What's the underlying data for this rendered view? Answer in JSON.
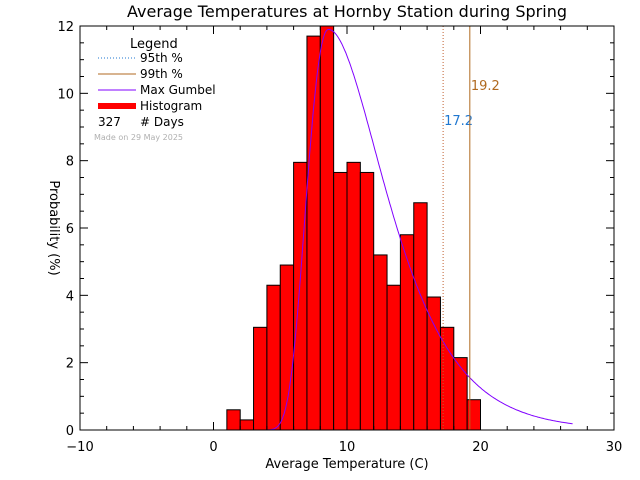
{
  "chart_data": {
    "type": "bar",
    "title": "Average Temperatures at Hornby Station during Spring",
    "xlabel": "Average Temperature (C)",
    "ylabel": "Probability (%)",
    "xlim": [
      -10,
      30
    ],
    "ylim": [
      0,
      12
    ],
    "xticks": [
      -10,
      0,
      10,
      20,
      30
    ],
    "yticks": [
      0,
      2,
      4,
      6,
      8,
      10,
      12
    ],
    "histogram": {
      "name": "Histogram",
      "color": "#ff0000",
      "bin_edges": [
        1,
        2,
        3,
        4,
        5,
        6,
        7,
        8,
        9,
        10,
        11,
        12,
        13,
        14,
        15,
        16,
        17,
        18,
        19,
        20
      ],
      "values": [
        0.6,
        0.3,
        3.05,
        4.3,
        4.9,
        7.95,
        11.7,
        12.0,
        7.65,
        7.95,
        7.65,
        5.2,
        4.3,
        5.8,
        6.75,
        3.95,
        3.05,
        2.15,
        0.9
      ]
    },
    "gumbel": {
      "name": "Max Gumbel",
      "color": "#8000ff",
      "mode": 8.6,
      "peak": 11.9,
      "left_width": 1.85,
      "right_width": 3.55
    },
    "percentiles": [
      {
        "name": "95th %",
        "value": 17.2,
        "label": "17.2",
        "color": "#1f77d0",
        "style": "dotted",
        "line_color": "#c06030"
      },
      {
        "name": "99th %",
        "value": 19.2,
        "label": "19.2",
        "color": "#b06a20",
        "style": "solid",
        "line_color": "#b06a20"
      }
    ],
    "legend": {
      "title": "Legend",
      "placement": "top-left",
      "days_count": "327",
      "days_label": "# Days",
      "entries": [
        {
          "label": "95th %",
          "color": "#1f77d0",
          "style": "dotted"
        },
        {
          "label": "99th %",
          "color": "#b06a20",
          "style": "solid"
        },
        {
          "label": "Max Gumbel",
          "color": "#8000ff",
          "style": "solid"
        },
        {
          "label": "Histogram",
          "color": "#ff0000",
          "style": "thick"
        }
      ]
    },
    "made_on": "Made on 29 May 2025"
  }
}
